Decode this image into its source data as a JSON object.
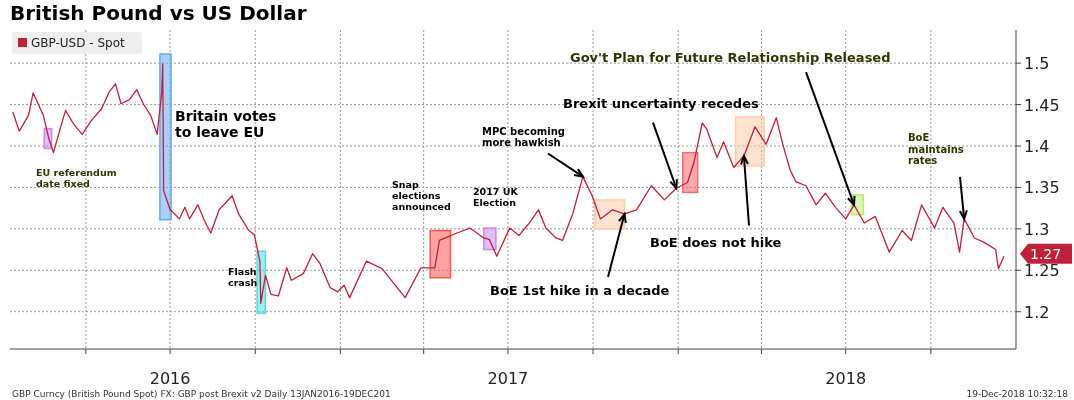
{
  "chart_data": {
    "type": "line",
    "title": "British Pound vs US Dollar",
    "xlim": [
      "2016-01-10",
      "2019-01-01"
    ],
    "xticks": [
      {
        "value": "2016-04-01",
        "label": null
      },
      {
        "value": "2016-07-01",
        "label": "2016"
      },
      {
        "value": "2016-10-01",
        "label": null
      },
      {
        "value": "2017-01-01",
        "label": null
      },
      {
        "value": "2017-04-01",
        "label": null
      },
      {
        "value": "2017-07-01",
        "label": "2017"
      },
      {
        "value": "2017-10-01",
        "label": null
      },
      {
        "value": "2018-01-01",
        "label": null
      },
      {
        "value": "2018-04-01",
        "label": null
      },
      {
        "value": "2018-07-01",
        "label": "2018"
      },
      {
        "value": "2018-10-01",
        "label": null
      }
    ],
    "ylim": [
      1.155,
      1.54
    ],
    "yticks": [
      1.2,
      1.25,
      1.3,
      1.35,
      1.4,
      1.45,
      1.5
    ],
    "grid": true,
    "legend": "top left",
    "series": [
      {
        "name": "GBP-USD - Spot",
        "color": "#c0203a",
        "x": [
          "2016-01-13",
          "2016-01-20",
          "2016-01-30",
          "2016-02-04",
          "2016-02-09",
          "2016-02-15",
          "2016-02-21",
          "2016-02-26",
          "2016-03-04",
          "2016-03-10",
          "2016-03-19",
          "2016-03-28",
          "2016-04-07",
          "2016-04-18",
          "2016-04-26",
          "2016-05-03",
          "2016-05-09",
          "2016-05-18",
          "2016-05-26",
          "2016-06-02",
          "2016-06-10",
          "2016-06-17",
          "2016-06-22",
          "2016-06-23",
          "2016-06-24",
          "2016-07-01",
          "2016-07-06",
          "2016-07-11",
          "2016-07-17",
          "2016-07-22",
          "2016-07-31",
          "2016-08-07",
          "2016-08-14",
          "2016-08-23",
          "2016-09-06",
          "2016-09-13",
          "2016-09-24",
          "2016-09-30",
          "2016-10-06",
          "2016-10-07",
          "2016-10-12",
          "2016-10-18",
          "2016-10-26",
          "2016-11-04",
          "2016-11-09",
          "2016-11-22",
          "2016-12-02",
          "2016-12-10",
          "2016-12-21",
          "2016-12-29",
          "2017-01-05",
          "2017-01-11",
          "2017-01-29",
          "2017-02-15",
          "2017-03-12",
          "2017-03-29",
          "2017-04-13",
          "2017-04-18",
          "2017-05-07",
          "2017-05-21",
          "2017-06-05",
          "2017-06-11",
          "2017-06-19",
          "2017-06-26",
          "2017-07-03",
          "2017-07-13",
          "2017-07-24",
          "2017-08-03",
          "2017-08-11",
          "2017-08-22",
          "2017-08-29",
          "2017-09-09",
          "2017-09-20",
          "2017-09-30",
          "2017-10-09",
          "2017-10-22",
          "2017-11-04",
          "2017-11-17",
          "2017-12-03",
          "2017-12-17",
          "2017-12-30",
          "2018-01-11",
          "2018-01-18",
          "2018-01-27",
          "2018-02-01",
          "2018-02-12",
          "2018-02-19",
          "2018-03-02",
          "2018-03-13",
          "2018-03-25",
          "2018-04-06",
          "2018-04-17",
          "2018-04-24",
          "2018-05-02",
          "2018-05-08",
          "2018-05-19",
          "2018-05-30",
          "2018-06-09",
          "2018-06-20",
          "2018-07-01",
          "2018-07-10",
          "2018-07-21",
          "2018-08-02",
          "2018-08-17",
          "2018-08-31",
          "2018-09-10",
          "2018-09-21",
          "2018-10-05",
          "2018-10-14",
          "2018-10-26",
          "2018-11-01",
          "2018-11-06",
          "2018-11-17",
          "2018-11-27",
          "2018-12-10",
          "2018-12-13",
          "2018-12-19"
        ],
        "values": [
          1.441,
          1.418,
          1.437,
          1.464,
          1.452,
          1.437,
          1.409,
          1.392,
          1.42,
          1.443,
          1.426,
          1.414,
          1.431,
          1.445,
          1.465,
          1.475,
          1.451,
          1.456,
          1.468,
          1.451,
          1.437,
          1.414,
          1.465,
          1.499,
          1.346,
          1.323,
          1.318,
          1.312,
          1.326,
          1.312,
          1.329,
          1.31,
          1.295,
          1.323,
          1.34,
          1.318,
          1.298,
          1.293,
          1.261,
          1.21,
          1.244,
          1.221,
          1.219,
          1.253,
          1.238,
          1.246,
          1.27,
          1.258,
          1.229,
          1.224,
          1.232,
          1.217,
          1.261,
          1.252,
          1.217,
          1.253,
          1.253,
          1.286,
          1.295,
          1.301,
          1.289,
          1.287,
          1.267,
          1.284,
          1.301,
          1.292,
          1.307,
          1.323,
          1.301,
          1.289,
          1.286,
          1.318,
          1.363,
          1.34,
          1.312,
          1.323,
          1.318,
          1.323,
          1.352,
          1.335,
          1.349,
          1.356,
          1.38,
          1.428,
          1.42,
          1.386,
          1.405,
          1.374,
          1.388,
          1.423,
          1.402,
          1.434,
          1.402,
          1.371,
          1.357,
          1.352,
          1.329,
          1.343,
          1.326,
          1.312,
          1.329,
          1.307,
          1.315,
          1.272,
          1.298,
          1.286,
          1.329,
          1.301,
          1.326,
          1.307,
          1.272,
          1.312,
          1.289,
          1.284,
          1.275,
          1.252,
          1.267
        ]
      }
    ],
    "bands": [
      {
        "axis": "x",
        "from": "2016-02-16",
        "to": "2016-02-24",
        "color": "#cc88ee"
      },
      {
        "axis": "x",
        "from": "2016-06-20",
        "to": "2016-07-02",
        "color": "#66aaee"
      },
      {
        "axis": "x",
        "from": "2016-10-03",
        "to": "2016-10-12",
        "color": "#55dddd"
      },
      {
        "axis": "x",
        "from": "2017-04-08",
        "to": "2017-04-30",
        "color": "#ff5555"
      },
      {
        "axis": "x",
        "from": "2017-06-05",
        "to": "2017-06-18",
        "color": "#cc88ee"
      },
      {
        "axis": "x",
        "from": "2017-10-03",
        "to": "2017-11-04",
        "color": "#ffccaa"
      },
      {
        "axis": "x",
        "from": "2018-01-06",
        "to": "2018-01-22",
        "color": "#ff6666"
      },
      {
        "axis": "x",
        "from": "2018-03-04",
        "to": "2018-04-04",
        "color": "#ffccaa"
      },
      {
        "axis": "x",
        "from": "2018-07-07",
        "to": "2018-07-20",
        "color": "#bbee77"
      }
    ],
    "annotations": [
      "Britain votes\nto leave EU",
      "EU referendum\ndate fixed",
      "Flash\ncrash",
      "Snap\nelections\nannounced",
      "2017 UK\nElection",
      {
        "text": "MPC becoming\nmore hawkish",
        "x": "2017-09-20",
        "y": 1.363
      },
      {
        "text": "Brexit uncertainty recedes",
        "x": "2017-12-30",
        "y": 1.349
      },
      {
        "text": "Gov't Plan for Future Relationship Released",
        "x": "2018-07-10",
        "y": 1.329
      },
      {
        "text": "BoE does not hike",
        "x": "2018-03-13",
        "y": 1.388
      },
      {
        "text": "BoE 1st hike in a decade",
        "x": "2017-11-04",
        "y": 1.318
      },
      {
        "text": "BoE\nmaintains\nrates",
        "x": "2018-11-06",
        "y": 1.312
      },
      {
        "text": "1.27",
        "x": "2018-12-19",
        "y": 1.27
      },
      "GBP Curncy (British Pound Spot) FX: GBP post Brexit v2  Daily 13JAN2016-19DEC201",
      "19-Dec-2018 10:32:18"
    ]
  }
}
